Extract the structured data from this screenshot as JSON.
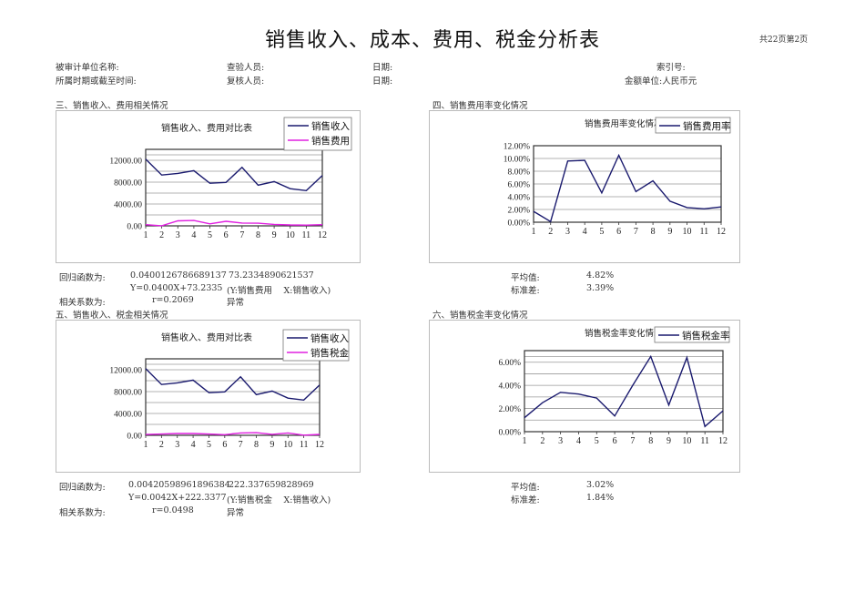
{
  "header": {
    "title": "销售收入、成本、费用、税金分析表",
    "page_info": "共22页第2页"
  },
  "meta": {
    "audited_unit_label": "被审计单位名称:",
    "period_label": "所属时期或截至时间:",
    "inspector_label": "查验人员:",
    "reviewer_label": "复核人员:",
    "date1_label": "日期:",
    "date2_label": "日期:",
    "index_label": "索引号:",
    "unit_label": "金额单位:人民币元"
  },
  "section3": {
    "heading": "三、销售收入、费用相关情况",
    "regression_label": "回归函数为:",
    "coef_a": "0.0400126786689137",
    "coef_b": "73.2334890621537",
    "equation": "Y=0.0400X+73.2335",
    "equation_note": "(Y:销售费用　 X:销售收入)",
    "corr_label": "相关系数为:",
    "corr_value": "r=0.2069",
    "status": "异常"
  },
  "section4": {
    "heading": "四、销售费用率变化情况",
    "mean_label": "平均值:",
    "mean_value": "4.82%",
    "std_label": "标准差:",
    "std_value": "3.39%"
  },
  "section5": {
    "heading": "五、销售收入、税金相关情况",
    "regression_label": "回归函数为:",
    "coef_a": "0.00420598961896384",
    "coef_b": "222.337659828969",
    "equation": "Y=0.0042X+222.3377",
    "equation_note": "(Y:销售税金　 X:销售收入)",
    "corr_label": "相关系数为:",
    "corr_value": "r=0.0498",
    "status": "异常"
  },
  "section6": {
    "heading": "六、销售税金率变化情况",
    "mean_label": "平均值:",
    "mean_value": "3.02%",
    "std_label": "标准差:",
    "std_value": "1.84%"
  },
  "colors": {
    "revenue": "#1a1a6e",
    "expense": "#e020e0",
    "tax": "#e020e0",
    "rate": "#1a1a6e"
  },
  "chart_data": [
    {
      "id": "chart1",
      "type": "line",
      "title": "销售收入、费用对比表",
      "categories": [
        "1",
        "2",
        "3",
        "4",
        "5",
        "6",
        "7",
        "8",
        "9",
        "10",
        "11",
        "12"
      ],
      "series": [
        {
          "name": "销售收入",
          "values": [
            12200,
            9300,
            9600,
            10100,
            7800,
            7950,
            10700,
            7450,
            8100,
            6800,
            6450,
            9200
          ]
        },
        {
          "name": "销售费用",
          "values": [
            210,
            10,
            920,
            980,
            360,
            830,
            510,
            480,
            270,
            160,
            140,
            220
          ]
        }
      ],
      "y_ticks": [
        "0.00",
        "4000.00",
        "8000.00",
        "12000.00"
      ],
      "ylim": [
        0,
        14000
      ],
      "legend_position": "top-right",
      "grid": true
    },
    {
      "id": "chart2",
      "type": "line",
      "title": "销售费用率变化情况",
      "categories": [
        "1",
        "2",
        "3",
        "4",
        "5",
        "6",
        "7",
        "8",
        "9",
        "10",
        "11",
        "12"
      ],
      "series": [
        {
          "name": "销售费用率",
          "values": [
            1.7,
            0.1,
            9.6,
            9.7,
            4.6,
            10.5,
            4.8,
            6.5,
            3.3,
            2.3,
            2.1,
            2.4
          ]
        }
      ],
      "y_ticks": [
        "0.00%",
        "2.00%",
        "4.00%",
        "6.00%",
        "8.00%",
        "10.00%",
        "12.00%"
      ],
      "ylim": [
        0,
        12
      ],
      "legend_position": "top-right",
      "grid": true
    },
    {
      "id": "chart3",
      "type": "line",
      "title": "销售收入、费用对比表",
      "categories": [
        "1",
        "2",
        "3",
        "4",
        "5",
        "6",
        "7",
        "8",
        "9",
        "10",
        "11",
        "12"
      ],
      "series": [
        {
          "name": "销售收入",
          "values": [
            12200,
            9300,
            9600,
            10100,
            7800,
            7950,
            10700,
            7450,
            8100,
            6800,
            6450,
            9200
          ]
        },
        {
          "name": "销售税金",
          "values": [
            150,
            230,
            330,
            330,
            230,
            110,
            430,
            480,
            190,
            440,
            30,
            170
          ]
        }
      ],
      "y_ticks": [
        "0.00",
        "4000.00",
        "8000.00",
        "12000.00"
      ],
      "ylim": [
        0,
        14000
      ],
      "legend_position": "top-right",
      "grid": true
    },
    {
      "id": "chart4",
      "type": "line",
      "title": "销售税金率变化情况",
      "categories": [
        "1",
        "2",
        "3",
        "4",
        "5",
        "6",
        "7",
        "8",
        "9",
        "10",
        "11",
        "12"
      ],
      "series": [
        {
          "name": "销售税金率",
          "values": [
            1.2,
            2.5,
            3.4,
            3.25,
            2.9,
            1.35,
            4.0,
            6.5,
            2.3,
            6.4,
            0.45,
            1.8
          ]
        }
      ],
      "y_ticks": [
        "0.00%",
        "2.00%",
        "4.00%",
        "6.00%"
      ],
      "ylim": [
        0,
        7
      ],
      "legend_position": "top-right",
      "grid": true
    }
  ]
}
